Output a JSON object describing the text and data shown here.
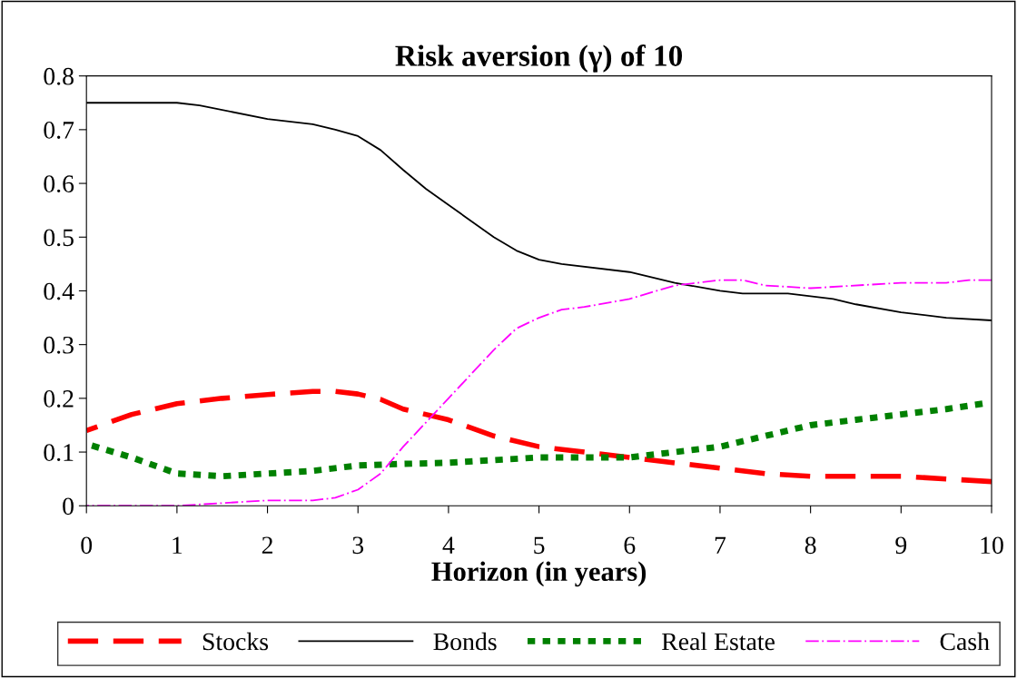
{
  "chart_data": {
    "type": "line",
    "title": "Risk aversion (γ) of 10",
    "xlabel": "Horizon (in years)",
    "xlim": [
      0,
      10
    ],
    "xticks": [
      0,
      1,
      2,
      3,
      4,
      5,
      6,
      7,
      8,
      9,
      10
    ],
    "ylim": [
      0,
      0.8
    ],
    "yticks": [
      0,
      0.1,
      0.2,
      0.3,
      0.4,
      0.5,
      0.6,
      0.7,
      0.8
    ],
    "grid": false,
    "legend": "bottom",
    "marker": "none",
    "series": [
      {
        "name": "Stocks",
        "color": "#ff0000",
        "line_style": "dashed",
        "x": [
          0,
          0.5,
          1,
          1.5,
          2,
          2.5,
          2.75,
          3,
          3.25,
          3.5,
          4,
          4.5,
          5,
          5.5,
          6,
          6.5,
          7,
          7.5,
          8,
          9,
          9.5,
          10
        ],
        "values": [
          0.14,
          0.17,
          0.19,
          0.2,
          0.207,
          0.213,
          0.213,
          0.208,
          0.198,
          0.18,
          0.16,
          0.13,
          0.11,
          0.1,
          0.09,
          0.08,
          0.07,
          0.06,
          0.055,
          0.055,
          0.05,
          0.045
        ]
      },
      {
        "name": "Bonds",
        "color": "#000000",
        "line_style": "solid",
        "x": [
          0,
          1,
          1.25,
          2,
          2.5,
          2.75,
          3,
          3.25,
          3.5,
          3.75,
          4,
          4.5,
          4.75,
          5,
          5.25,
          6,
          6.5,
          7,
          7.25,
          7.75,
          8.25,
          8.5,
          9,
          9.5,
          10
        ],
        "values": [
          0.75,
          0.75,
          0.745,
          0.72,
          0.71,
          0.7,
          0.688,
          0.662,
          0.625,
          0.59,
          0.56,
          0.5,
          0.475,
          0.458,
          0.45,
          0.435,
          0.415,
          0.4,
          0.395,
          0.395,
          0.385,
          0.375,
          0.36,
          0.35,
          0.345
        ]
      },
      {
        "name": "Real Estate",
        "color": "#008000",
        "line_style": "dotted",
        "x": [
          0,
          0.5,
          1,
          1.5,
          2,
          2.5,
          3,
          3.5,
          4,
          5,
          6,
          6.5,
          7,
          7.5,
          8,
          8.5,
          9,
          9.5,
          9.9
        ],
        "values": [
          0.115,
          0.09,
          0.06,
          0.055,
          0.06,
          0.065,
          0.075,
          0.078,
          0.08,
          0.09,
          0.09,
          0.1,
          0.11,
          0.13,
          0.15,
          0.16,
          0.17,
          0.18,
          0.19
        ]
      },
      {
        "name": "Cash",
        "color": "#ff00ff",
        "line_style": "dashdot",
        "x": [
          0,
          1,
          2,
          2.5,
          2.75,
          3,
          3.25,
          3.5,
          4,
          4.5,
          4.75,
          5,
          5.25,
          5.5,
          6,
          6.5,
          7,
          7.25,
          7.5,
          8,
          9,
          9.5,
          9.75,
          10
        ],
        "values": [
          0,
          0,
          0.01,
          0.01,
          0.015,
          0.03,
          0.06,
          0.11,
          0.2,
          0.29,
          0.33,
          0.35,
          0.365,
          0.37,
          0.385,
          0.41,
          0.42,
          0.42,
          0.41,
          0.405,
          0.415,
          0.415,
          0.42,
          0.42
        ]
      }
    ]
  }
}
